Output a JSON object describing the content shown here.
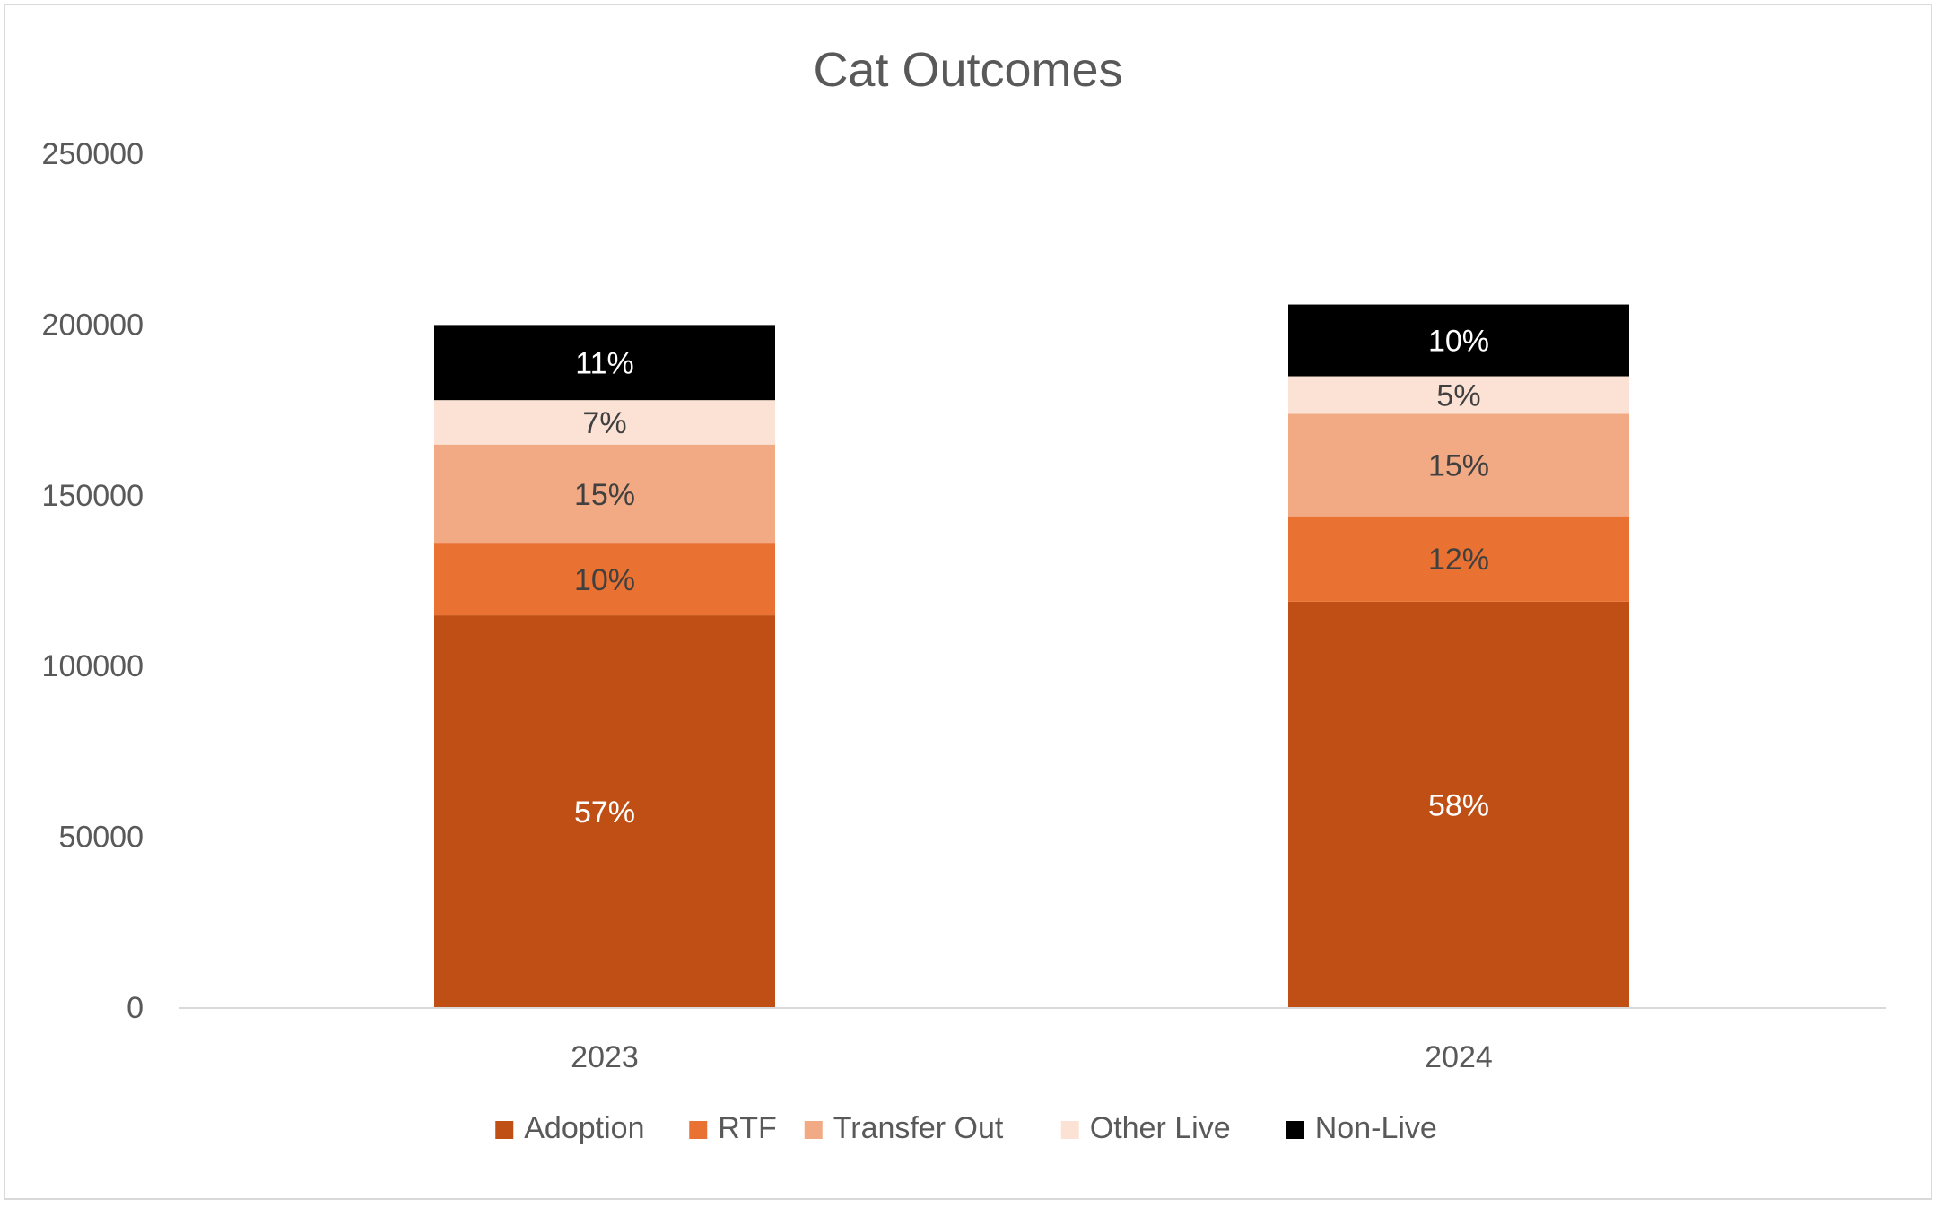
{
  "chart_data": {
    "type": "bar",
    "stacked": true,
    "title": "Cat Outcomes",
    "xlabel": "",
    "ylabel": "",
    "ylim": [
      0,
      250000
    ],
    "yticks": [
      0,
      50000,
      100000,
      150000,
      200000,
      250000
    ],
    "ytick_labels": [
      "0",
      "50000",
      "100000",
      "150000",
      "200000",
      "250000"
    ],
    "grid": false,
    "legend_position": "bottom",
    "categories": [
      "2023",
      "2024"
    ],
    "series": [
      {
        "name": "Adoption",
        "color": "#C04F15",
        "label_color": "#FFFFFF",
        "values": [
          115000,
          119000
        ],
        "labels": [
          "57%",
          "58%"
        ]
      },
      {
        "name": "RTF",
        "color": "#E97132",
        "label_color": "#404040",
        "values": [
          21000,
          25000
        ],
        "labels": [
          "10%",
          "12%"
        ]
      },
      {
        "name": "Transfer Out",
        "color": "#F2AA84",
        "label_color": "#404040",
        "values": [
          29000,
          30000
        ],
        "labels": [
          "15%",
          "15%"
        ]
      },
      {
        "name": "Other Live",
        "color": "#FBE2D5",
        "label_color": "#404040",
        "values": [
          13000,
          11000
        ],
        "labels": [
          "7%",
          "5%"
        ]
      },
      {
        "name": "Non-Live",
        "color": "#000000",
        "label_color": "#FFFFFF",
        "values": [
          22000,
          21000
        ],
        "labels": [
          "11%",
          "10%"
        ]
      }
    ]
  }
}
